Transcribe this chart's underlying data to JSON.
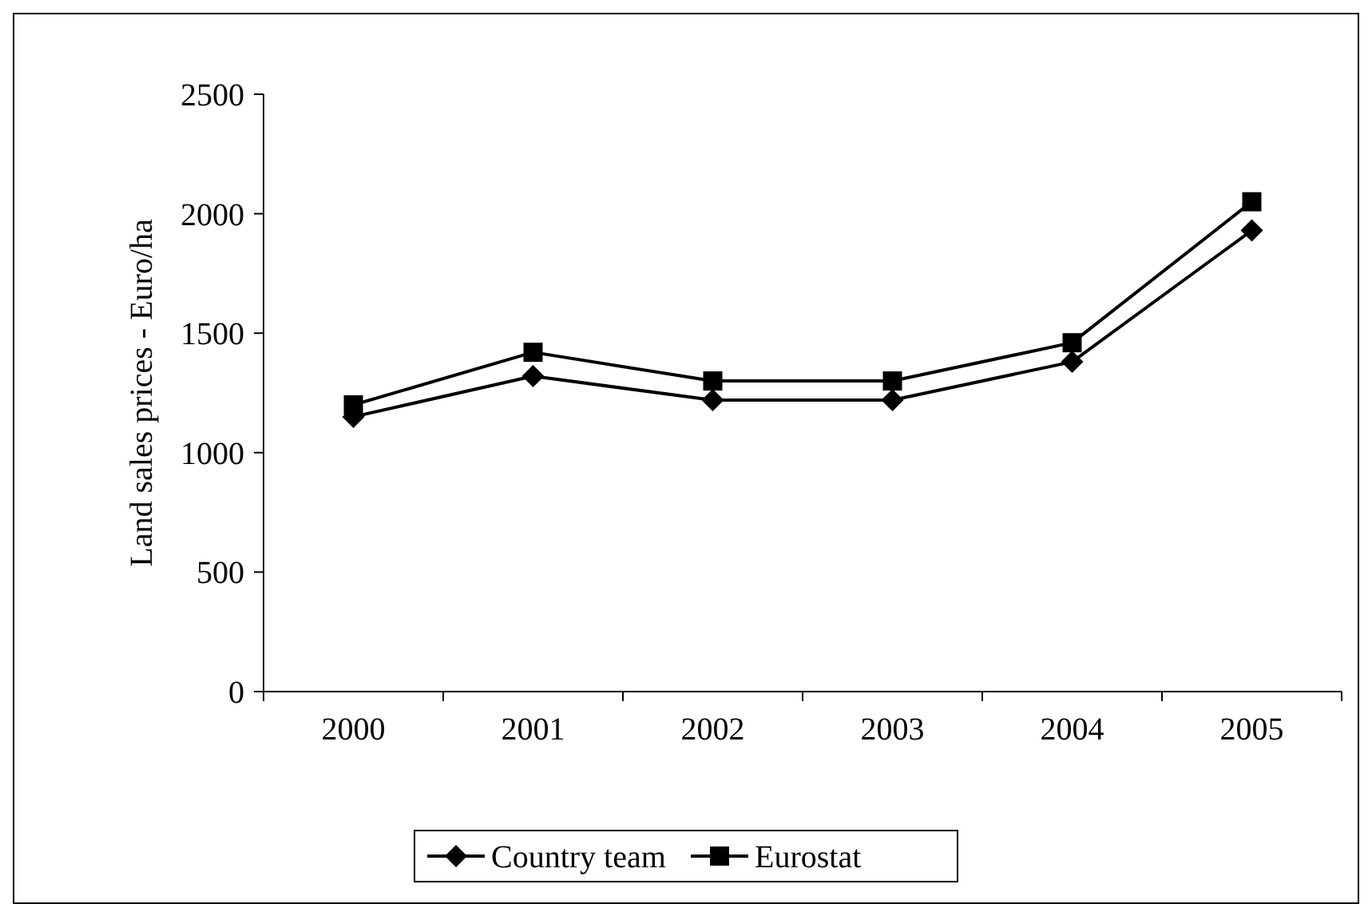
{
  "chart_data": {
    "type": "line",
    "ylabel": "Land sales prices - Euro/ha",
    "categories": [
      "2000",
      "2001",
      "2002",
      "2003",
      "2004",
      "2005"
    ],
    "series": [
      {
        "name": "Country team",
        "color": "#000000",
        "marker": "diamond",
        "values": [
          1150,
          1320,
          1220,
          1220,
          1380,
          1930
        ]
      },
      {
        "name": "Eurostat",
        "color": "#000000",
        "marker": "square",
        "values": [
          1200,
          1420,
          1300,
          1300,
          1460,
          2050
        ]
      }
    ],
    "ylim": [
      0,
      2500
    ],
    "yticks": [
      0,
      500,
      1000,
      1500,
      2000,
      2500
    ],
    "grid": false,
    "legend": "bottom",
    "line_style": "solid"
  }
}
